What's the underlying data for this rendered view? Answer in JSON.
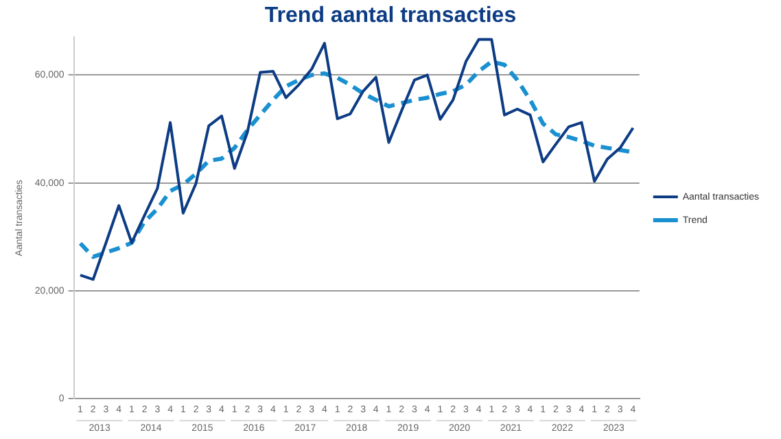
{
  "chart_data": {
    "type": "line",
    "title": "Trend aantal transacties",
    "ylabel": "Aantal transacties",
    "categories": [
      "1",
      "2",
      "3",
      "4",
      "1",
      "2",
      "3",
      "4",
      "1",
      "2",
      "3",
      "4",
      "1",
      "2",
      "3",
      "4",
      "1",
      "2",
      "3",
      "4",
      "1",
      "2",
      "3",
      "4",
      "1",
      "2",
      "3",
      "4",
      "1",
      "2",
      "3",
      "4",
      "1",
      "2",
      "3",
      "4",
      "1",
      "2",
      "3",
      "4",
      "1",
      "2",
      "3",
      "4"
    ],
    "annotations": [
      "2013",
      "2014",
      "2015",
      "2016",
      "2017",
      "2018",
      "2019",
      "2020",
      "2021",
      "2022",
      "2023"
    ],
    "series": [
      {
        "name": "Aantal transacties",
        "color": "#0d3c84",
        "line_style": "solid",
        "values": [
          22900,
          22100,
          28900,
          35800,
          28900,
          34000,
          39000,
          51200,
          34400,
          39900,
          50600,
          52400,
          42700,
          49400,
          60500,
          60700,
          55800,
          58200,
          61100,
          65900,
          51900,
          52800,
          57000,
          59600,
          47500,
          53400,
          59100,
          60000,
          51800,
          55400,
          62500,
          66600,
          66600,
          52600,
          53700,
          52600,
          43900,
          47200,
          50400,
          51200,
          40300,
          44400,
          46500,
          50200
        ]
      },
      {
        "name": "Trend",
        "color": "#1a90d0",
        "line_style": "dashed",
        "values": [
          28800,
          26300,
          27100,
          27900,
          28900,
          32800,
          35200,
          38500,
          39700,
          41700,
          44100,
          44500,
          46500,
          49800,
          52600,
          55400,
          57900,
          59100,
          60000,
          60300,
          59500,
          58200,
          56600,
          55400,
          54200,
          54800,
          55400,
          55800,
          56500,
          57000,
          58200,
          60700,
          62500,
          61900,
          59100,
          55400,
          51000,
          49000,
          48500,
          47800,
          46900,
          46500,
          46100,
          45700
        ]
      }
    ],
    "ylim": [
      0,
      67000
    ],
    "yticks": [
      {
        "value": 0,
        "label": "0"
      },
      {
        "value": 20000,
        "label": "20,000"
      },
      {
        "value": 40000,
        "label": "40,000"
      },
      {
        "value": 60000,
        "label": "60,000"
      }
    ],
    "grid": "y",
    "legend": "right",
    "marker": "none"
  }
}
